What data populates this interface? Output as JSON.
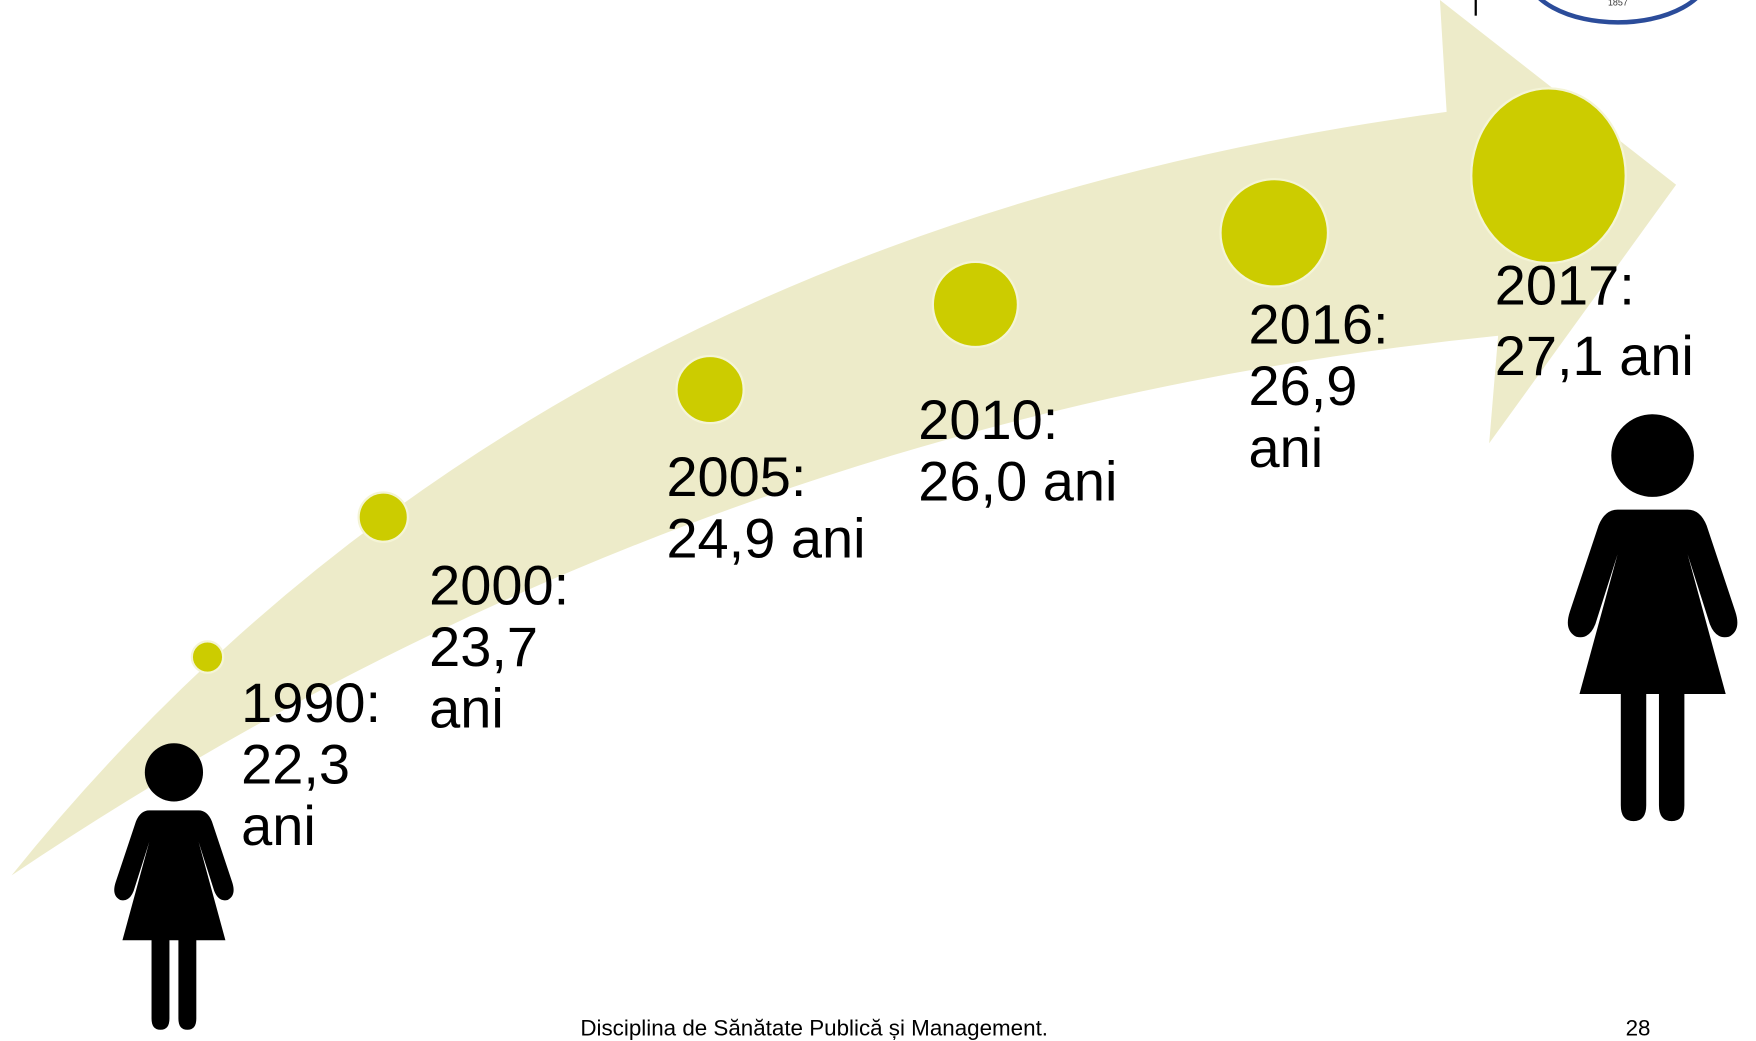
{
  "logo_text": "1857",
  "timeline": [
    {
      "lines": [
        "1990:",
        "22,3",
        "ani"
      ]
    },
    {
      "lines": [
        "2000:",
        "23,7",
        "ani"
      ]
    },
    {
      "lines": [
        "2005:",
        "24,9 ani"
      ]
    },
    {
      "lines": [
        "2010:",
        "26,0 ani"
      ]
    },
    {
      "lines": [
        "2016:",
        "26,9",
        "ani"
      ]
    },
    {
      "lines": [
        "2017:",
        "27,1 ani"
      ]
    }
  ],
  "footer": {
    "text": "Disciplina de Sănătate Publică și Management.",
    "page": "28"
  }
}
